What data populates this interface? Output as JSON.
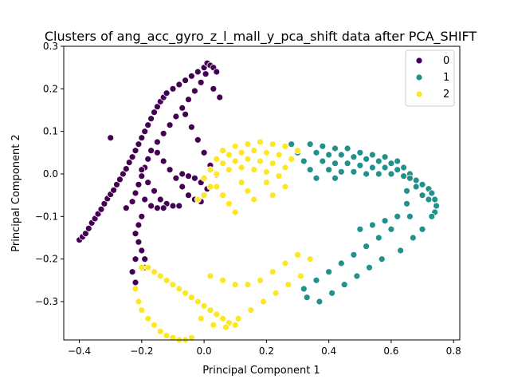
{
  "chart_data": {
    "type": "scatter",
    "title": "Clusters of ang_acc_gyro_z_l_mall_y_pca_shift data after PCA_SHIFT",
    "xlabel": "Principal Component 1",
    "ylabel": "Principal Component 2",
    "xlim": [
      -0.45,
      0.82
    ],
    "ylim": [
      -0.39,
      0.3
    ],
    "xticks": [
      -0.4,
      -0.2,
      0.0,
      0.2,
      0.4,
      0.6,
      0.8
    ],
    "xtick_labels": [
      "−0.4",
      "−0.2",
      "0.0",
      "0.2",
      "0.4",
      "0.6",
      "0.8"
    ],
    "yticks": [
      -0.3,
      -0.2,
      -0.1,
      0.0,
      0.1,
      0.2,
      0.3
    ],
    "ytick_labels": [
      "−0.3",
      "−0.2",
      "−0.1",
      "0.0",
      "0.1",
      "0.2",
      "0.3"
    ],
    "grid": false,
    "legend_position": "top-right",
    "series": [
      {
        "name": "0",
        "color": "#440154",
        "points": [
          [
            -0.4,
            -0.155
          ],
          [
            -0.39,
            -0.148
          ],
          [
            -0.38,
            -0.14
          ],
          [
            -0.37,
            -0.128
          ],
          [
            -0.36,
            -0.115
          ],
          [
            -0.35,
            -0.105
          ],
          [
            -0.34,
            -0.094
          ],
          [
            -0.33,
            -0.083
          ],
          [
            -0.32,
            -0.07
          ],
          [
            -0.31,
            -0.058
          ],
          [
            -0.3,
            -0.048
          ],
          [
            -0.29,
            -0.038
          ],
          [
            -0.28,
            -0.025
          ],
          [
            -0.27,
            -0.013
          ],
          [
            -0.26,
            0.0
          ],
          [
            -0.25,
            0.012
          ],
          [
            -0.24,
            0.027
          ],
          [
            -0.23,
            0.04
          ],
          [
            -0.22,
            0.055
          ],
          [
            -0.21,
            0.07
          ],
          [
            -0.2,
            0.085
          ],
          [
            -0.19,
            0.1
          ],
          [
            -0.18,
            0.115
          ],
          [
            -0.17,
            0.13
          ],
          [
            -0.16,
            0.145
          ],
          [
            -0.15,
            0.158
          ],
          [
            -0.14,
            0.17
          ],
          [
            -0.13,
            0.18
          ],
          [
            -0.12,
            0.19
          ],
          [
            -0.1,
            0.2
          ],
          [
            -0.08,
            0.21
          ],
          [
            -0.06,
            0.22
          ],
          [
            -0.04,
            0.23
          ],
          [
            -0.02,
            0.24
          ],
          [
            0.0,
            0.25
          ],
          [
            0.01,
            0.26
          ],
          [
            0.02,
            0.255
          ],
          [
            0.03,
            0.25
          ],
          [
            0.04,
            0.24
          ],
          [
            0.005,
            0.235
          ],
          [
            -0.01,
            0.215
          ],
          [
            -0.03,
            0.195
          ],
          [
            -0.05,
            0.175
          ],
          [
            -0.07,
            0.155
          ],
          [
            -0.09,
            0.135
          ],
          [
            -0.11,
            0.115
          ],
          [
            -0.13,
            0.095
          ],
          [
            -0.15,
            0.075
          ],
          [
            -0.17,
            0.055
          ],
          [
            -0.18,
            0.035
          ],
          [
            -0.19,
            0.015
          ],
          [
            -0.2,
            -0.005
          ],
          [
            -0.21,
            -0.025
          ],
          [
            -0.22,
            -0.045
          ],
          [
            -0.23,
            -0.065
          ],
          [
            -0.25,
            -0.08
          ],
          [
            -0.3,
            0.085
          ],
          [
            -0.2,
            -0.1
          ],
          [
            -0.21,
            -0.12
          ],
          [
            -0.22,
            -0.14
          ],
          [
            -0.21,
            -0.16
          ],
          [
            -0.2,
            -0.18
          ],
          [
            -0.19,
            -0.2
          ],
          [
            -0.22,
            -0.2
          ],
          [
            -0.23,
            -0.23
          ],
          [
            -0.22,
            -0.255
          ],
          [
            -0.19,
            -0.22
          ],
          [
            -0.2,
            0.01
          ],
          [
            -0.18,
            -0.02
          ],
          [
            -0.16,
            -0.04
          ],
          [
            -0.14,
            -0.06
          ],
          [
            -0.12,
            -0.07
          ],
          [
            -0.1,
            -0.075
          ],
          [
            -0.08,
            -0.075
          ],
          [
            -0.19,
            -0.06
          ],
          [
            -0.17,
            -0.075
          ],
          [
            -0.15,
            -0.08
          ],
          [
            -0.13,
            -0.08
          ],
          [
            -0.15,
            0.05
          ],
          [
            -0.13,
            0.03
          ],
          [
            -0.11,
            0.01
          ],
          [
            -0.09,
            -0.01
          ],
          [
            -0.07,
            -0.03
          ],
          [
            -0.05,
            -0.05
          ],
          [
            -0.03,
            -0.06
          ],
          [
            -0.01,
            -0.065
          ],
          [
            -0.07,
            0.0
          ],
          [
            -0.05,
            -0.005
          ],
          [
            -0.03,
            -0.01
          ],
          [
            -0.01,
            -0.02
          ],
          [
            0.01,
            -0.035
          ],
          [
            0.0,
            0.05
          ],
          [
            -0.02,
            0.08
          ],
          [
            -0.04,
            0.11
          ],
          [
            -0.06,
            0.14
          ],
          [
            0.02,
            0.02
          ],
          [
            0.04,
            -0.002
          ],
          [
            0.03,
            0.2
          ],
          [
            0.05,
            0.18
          ]
        ]
      },
      {
        "name": "1",
        "color": "#21918c",
        "points": [
          [
            0.28,
            0.07
          ],
          [
            0.3,
            0.05
          ],
          [
            0.32,
            0.03
          ],
          [
            0.34,
            0.01
          ],
          [
            0.36,
            -0.01
          ],
          [
            0.34,
            0.07
          ],
          [
            0.36,
            0.05
          ],
          [
            0.38,
            0.03
          ],
          [
            0.4,
            0.01
          ],
          [
            0.42,
            -0.01
          ],
          [
            0.38,
            0.065
          ],
          [
            0.4,
            0.045
          ],
          [
            0.42,
            0.025
          ],
          [
            0.44,
            0.005
          ],
          [
            0.42,
            0.06
          ],
          [
            0.44,
            0.045
          ],
          [
            0.46,
            0.025
          ],
          [
            0.48,
            0.005
          ],
          [
            0.46,
            0.06
          ],
          [
            0.48,
            0.04
          ],
          [
            0.5,
            0.02
          ],
          [
            0.52,
            0.0
          ],
          [
            0.5,
            0.05
          ],
          [
            0.52,
            0.035
          ],
          [
            0.54,
            0.015
          ],
          [
            0.56,
            0.0
          ],
          [
            0.54,
            0.045
          ],
          [
            0.56,
            0.03
          ],
          [
            0.58,
            0.015
          ],
          [
            0.6,
            0.0
          ],
          [
            0.58,
            0.04
          ],
          [
            0.6,
            0.025
          ],
          [
            0.62,
            0.01
          ],
          [
            0.64,
            -0.005
          ],
          [
            0.62,
            0.03
          ],
          [
            0.64,
            0.015
          ],
          [
            0.66,
            0.0
          ],
          [
            0.68,
            -0.015
          ],
          [
            0.66,
            -0.01
          ],
          [
            0.68,
            -0.03
          ],
          [
            0.7,
            -0.025
          ],
          [
            0.72,
            -0.035
          ],
          [
            0.73,
            -0.045
          ],
          [
            0.74,
            -0.06
          ],
          [
            0.745,
            -0.075
          ],
          [
            0.74,
            -0.09
          ],
          [
            0.72,
            -0.06
          ],
          [
            0.7,
            -0.05
          ],
          [
            0.65,
            -0.04
          ],
          [
            0.65,
            -0.07
          ],
          [
            0.66,
            -0.1
          ],
          [
            0.62,
            -0.1
          ],
          [
            0.58,
            -0.11
          ],
          [
            0.54,
            -0.12
          ],
          [
            0.5,
            -0.13
          ],
          [
            0.6,
            -0.13
          ],
          [
            0.56,
            -0.15
          ],
          [
            0.52,
            -0.17
          ],
          [
            0.48,
            -0.19
          ],
          [
            0.44,
            -0.21
          ],
          [
            0.4,
            -0.23
          ],
          [
            0.36,
            -0.25
          ],
          [
            0.32,
            -0.27
          ],
          [
            0.57,
            -0.2
          ],
          [
            0.53,
            -0.22
          ],
          [
            0.49,
            -0.24
          ],
          [
            0.45,
            -0.26
          ],
          [
            0.41,
            -0.28
          ],
          [
            0.37,
            -0.3
          ],
          [
            0.33,
            -0.29
          ],
          [
            0.63,
            -0.18
          ],
          [
            0.67,
            -0.15
          ],
          [
            0.7,
            -0.13
          ],
          [
            0.73,
            -0.1
          ]
        ]
      },
      {
        "name": "2",
        "color": "#fde725",
        "points": [
          [
            0.3,
            0.055
          ],
          [
            0.28,
            0.035
          ],
          [
            0.26,
            0.015
          ],
          [
            0.24,
            -0.005
          ],
          [
            0.26,
            0.065
          ],
          [
            0.24,
            0.045
          ],
          [
            0.22,
            0.025
          ],
          [
            0.2,
            0.005
          ],
          [
            0.22,
            0.07
          ],
          [
            0.2,
            0.05
          ],
          [
            0.18,
            0.03
          ],
          [
            0.16,
            0.01
          ],
          [
            0.18,
            0.075
          ],
          [
            0.16,
            0.055
          ],
          [
            0.14,
            0.035
          ],
          [
            0.12,
            0.015
          ],
          [
            0.14,
            0.07
          ],
          [
            0.12,
            0.05
          ],
          [
            0.1,
            0.03
          ],
          [
            0.08,
            0.01
          ],
          [
            0.1,
            0.065
          ],
          [
            0.08,
            0.045
          ],
          [
            0.06,
            0.025
          ],
          [
            0.04,
            0.0
          ],
          [
            0.06,
            0.055
          ],
          [
            0.04,
            0.035
          ],
          [
            0.02,
            0.01
          ],
          [
            0.0,
            -0.01
          ],
          [
            0.02,
            -0.03
          ],
          [
            0.0,
            -0.05
          ],
          [
            0.04,
            -0.03
          ],
          [
            0.06,
            -0.05
          ],
          [
            0.08,
            -0.07
          ],
          [
            0.1,
            -0.09
          ],
          [
            0.12,
            -0.02
          ],
          [
            0.14,
            -0.04
          ],
          [
            0.16,
            -0.06
          ],
          [
            0.2,
            -0.02
          ],
          [
            0.22,
            -0.05
          ],
          [
            0.26,
            -0.03
          ],
          [
            -0.02,
            -0.06
          ],
          [
            -0.2,
            -0.22
          ],
          [
            -0.22,
            -0.27
          ],
          [
            -0.21,
            -0.3
          ],
          [
            -0.2,
            -0.32
          ],
          [
            -0.18,
            -0.34
          ],
          [
            -0.16,
            -0.355
          ],
          [
            -0.14,
            -0.37
          ],
          [
            -0.12,
            -0.38
          ],
          [
            -0.1,
            -0.385
          ],
          [
            -0.08,
            -0.39
          ],
          [
            -0.06,
            -0.39
          ],
          [
            -0.04,
            -0.385
          ],
          [
            -0.18,
            -0.22
          ],
          [
            -0.16,
            -0.23
          ],
          [
            -0.14,
            -0.24
          ],
          [
            -0.12,
            -0.25
          ],
          [
            -0.1,
            -0.26
          ],
          [
            -0.08,
            -0.27
          ],
          [
            -0.06,
            -0.28
          ],
          [
            -0.04,
            -0.29
          ],
          [
            -0.02,
            -0.3
          ],
          [
            0.0,
            -0.31
          ],
          [
            0.02,
            -0.32
          ],
          [
            0.04,
            -0.33
          ],
          [
            0.06,
            -0.34
          ],
          [
            0.08,
            -0.35
          ],
          [
            0.1,
            -0.355
          ],
          [
            -0.01,
            -0.34
          ],
          [
            0.03,
            -0.355
          ],
          [
            0.07,
            -0.36
          ],
          [
            0.11,
            -0.34
          ],
          [
            0.15,
            -0.32
          ],
          [
            0.19,
            -0.3
          ],
          [
            0.23,
            -0.28
          ],
          [
            0.27,
            -0.26
          ],
          [
            0.31,
            -0.24
          ],
          [
            0.02,
            -0.24
          ],
          [
            0.06,
            -0.25
          ],
          [
            0.1,
            -0.26
          ],
          [
            0.14,
            -0.26
          ],
          [
            0.18,
            -0.25
          ],
          [
            0.22,
            -0.23
          ],
          [
            0.26,
            -0.21
          ],
          [
            0.3,
            -0.19
          ],
          [
            0.34,
            -0.2
          ]
        ]
      }
    ]
  }
}
